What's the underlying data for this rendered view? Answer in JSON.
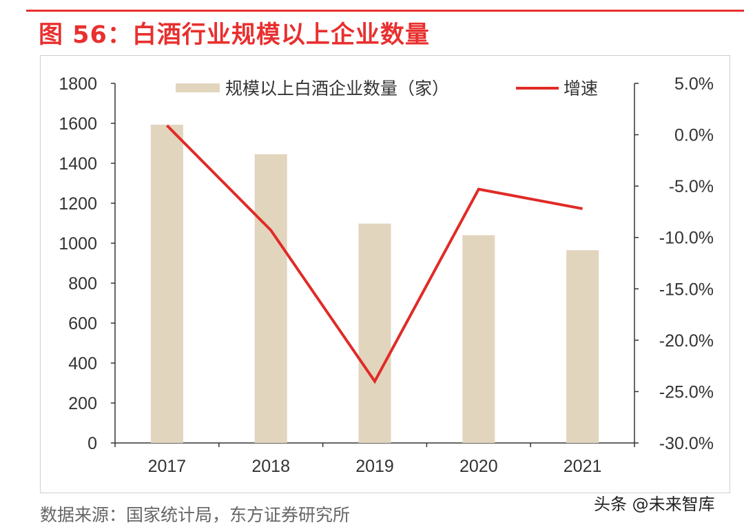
{
  "header": {
    "title": "图 56：白酒行业规模以上企业数量",
    "accent_color": "#e8302f"
  },
  "chart_data": {
    "type": "bar",
    "categories": [
      "2017",
      "2018",
      "2019",
      "2020",
      "2021"
    ],
    "series": [
      {
        "name": "规模以上白酒企业数量（家）",
        "type": "bar",
        "axis": "left",
        "color": "#e2d5bd",
        "values": [
          1593,
          1445,
          1098,
          1040,
          965
        ]
      },
      {
        "name": "增速",
        "type": "line",
        "axis": "right",
        "color": "#e02b27",
        "values": [
          0.9,
          -9.3,
          -24.0,
          -5.3,
          -7.2
        ]
      }
    ],
    "y_left": {
      "ylim": [
        0,
        1800
      ],
      "ticks": [
        "0",
        "200",
        "400",
        "600",
        "800",
        "1000",
        "1200",
        "1400",
        "1600",
        "1800"
      ]
    },
    "y_right": {
      "ylim": [
        -30,
        5
      ],
      "ticks": [
        "-30.0%",
        "-25.0%",
        "-20.0%",
        "-15.0%",
        "-10.0%",
        "-5.0%",
        "0.0%",
        "5.0%"
      ]
    },
    "legend": "top",
    "grid": false
  },
  "footer": {
    "source": "数据来源：国家统计局，东方证券研究所",
    "watermark": "头条 @未来智库"
  }
}
